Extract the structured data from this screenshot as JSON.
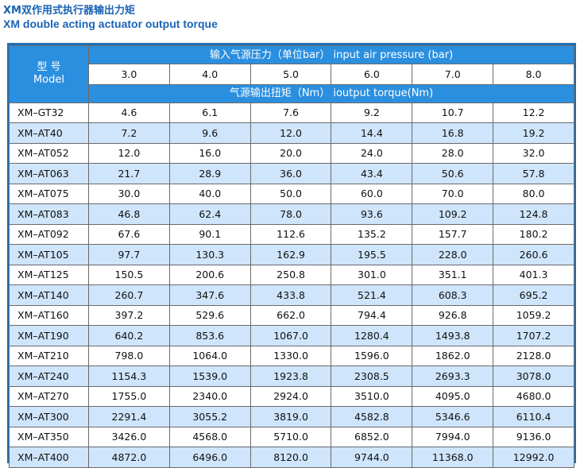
{
  "title_cn": "XM双作用式执行器输出力矩",
  "title_en": "XM double acting  actuator output torque",
  "header": {
    "model_cn": "型  号",
    "model_en": "Model",
    "pressure_label": "输入气源压力（单位bar） input air pressure (bar)",
    "torque_label": "气源输出扭矩（Nm）  ioutput torque(Nm)",
    "pressures": [
      "3.0",
      "4.0",
      "5.0",
      "6.0",
      "7.0",
      "8.0"
    ]
  },
  "rows": [
    {
      "model": "XM–GT32",
      "v": [
        "4.6",
        "6.1",
        "7.6",
        "9.2",
        "10.7",
        "12.2"
      ]
    },
    {
      "model": "XM–AT40",
      "v": [
        "7.2",
        "9.6",
        "12.0",
        "14.4",
        "16.8",
        "19.2"
      ]
    },
    {
      "model": "XM–AT052",
      "v": [
        "12.0",
        "16.0",
        "20.0",
        "24.0",
        "28.0",
        "32.0"
      ]
    },
    {
      "model": "XM–AT063",
      "v": [
        "21.7",
        "28.9",
        "36.0",
        "43.4",
        "50.6",
        "57.8"
      ]
    },
    {
      "model": "XM–AT075",
      "v": [
        "30.0",
        "40.0",
        "50.0",
        "60.0",
        "70.0",
        "80.0"
      ]
    },
    {
      "model": "XM–AT083",
      "v": [
        "46.8",
        "62.4",
        "78.0",
        "93.6",
        "109.2",
        "124.8"
      ]
    },
    {
      "model": "XM–AT092",
      "v": [
        "67.6",
        "90.1",
        "112.6",
        "135.2",
        "157.7",
        "180.2"
      ]
    },
    {
      "model": "XM–AT105",
      "v": [
        "97.7",
        "130.3",
        "162.9",
        "195.5",
        "228.0",
        "260.6"
      ]
    },
    {
      "model": "XM–AT125",
      "v": [
        "150.5",
        "200.6",
        "250.8",
        "301.0",
        "351.1",
        "401.3"
      ]
    },
    {
      "model": "XM–AT140",
      "v": [
        "260.7",
        "347.6",
        "433.8",
        "521.4",
        "608.3",
        "695.2"
      ]
    },
    {
      "model": "XM–AT160",
      "v": [
        "397.2",
        "529.6",
        "662.0",
        "794.4",
        "926.8",
        "1059.2"
      ]
    },
    {
      "model": "XM–AT190",
      "v": [
        "640.2",
        "853.6",
        "1067.0",
        "1280.4",
        "1493.8",
        "1707.2"
      ]
    },
    {
      "model": "XM–AT210",
      "v": [
        "798.0",
        "1064.0",
        "1330.0",
        "1596.0",
        "1862.0",
        "2128.0"
      ]
    },
    {
      "model": "XM–AT240",
      "v": [
        "1154.3",
        "1539.0",
        "1923.8",
        "2308.5",
        "2693.3",
        "3078.0"
      ]
    },
    {
      "model": "XM–AT270",
      "v": [
        "1755.0",
        "2340.0",
        "2924.0",
        "3510.0",
        "4095.0",
        "4680.0"
      ]
    },
    {
      "model": "XM–AT300",
      "v": [
        "2291.4",
        "3055.2",
        "3819.0",
        "4582.8",
        "5346.6",
        "6110.4"
      ]
    },
    {
      "model": "XM–AT350",
      "v": [
        "3426.0",
        "4568.0",
        "5710.0",
        "6852.0",
        "7994.0",
        "9136.0"
      ]
    },
    {
      "model": "XM–AT400",
      "v": [
        "4872.0",
        "6496.0",
        "8120.0",
        "9744.0",
        "11368.0",
        "12992.0"
      ]
    }
  ]
}
